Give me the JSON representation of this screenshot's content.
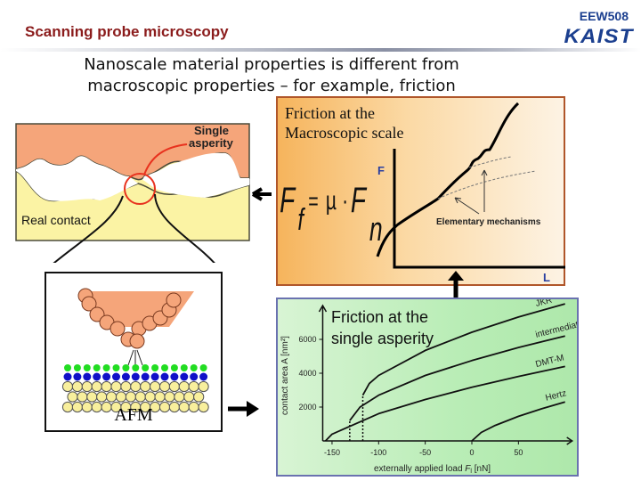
{
  "header": {
    "title": "Scanning probe microscopy",
    "course": "EEW508",
    "logo": "KAIST"
  },
  "subtitle": {
    "line1": "Nanoscale material properties is different from",
    "line2": "macroscopic properties – for example, friction"
  },
  "contact_figure": {
    "single_asperity_line1": "Single",
    "single_asperity_line2": "asperity",
    "real_contact": "Real contact",
    "colors": {
      "upper": "#f5a57a",
      "lower": "#fbf3a4",
      "circle": "#e8321e"
    }
  },
  "macro_panel": {
    "title_line1": "Friction at the",
    "title_line2": "Macroscopic scale",
    "formula": {
      "F": "F",
      "f": "f",
      "eq": "=",
      "mu": "µ",
      "dot": "·",
      "n": "n"
    },
    "axis_y": "F",
    "axis_x": "L",
    "annotation": "Elementary mechanisms"
  },
  "afm_panel": {
    "label": "AFM"
  },
  "chart_data": {
    "type": "line",
    "title": "Friction at the single asperity",
    "xlabel": "externally applied load F_l [nN]",
    "xlabel_main": "externally applied load ",
    "xlabel_sym": "F",
    "xlabel_sub": "l",
    "xlabel_unit": " [nN]",
    "ylabel": "contact area A [nm²]",
    "xlim": [
      -160,
      100
    ],
    "ylim": [
      0,
      8200
    ],
    "xticks": [
      -150,
      -100,
      -50,
      0,
      50
    ],
    "yticks": [
      2000,
      4000,
      6000
    ],
    "series": [
      {
        "name": "JKR",
        "x": [
          -117,
          -110,
          -100,
          -50,
          0,
          50,
          100
        ],
        "y": [
          2700,
          3390,
          3870,
          5350,
          6420,
          7320,
          8100
        ]
      },
      {
        "name": "intermediate",
        "x": [
          -131,
          -120,
          -100,
          -50,
          0,
          50,
          100
        ],
        "y": [
          1200,
          2000,
          2700,
          3870,
          4750,
          5520,
          6200
        ]
      },
      {
        "name": "DMT-M",
        "x": [
          -157,
          -150,
          -100,
          -50,
          0,
          50,
          100
        ],
        "y": [
          0,
          400,
          1610,
          2450,
          3170,
          3810,
          4400
        ]
      },
      {
        "name": "Hertz",
        "x": [
          0,
          10,
          25,
          50,
          75,
          100
        ],
        "y": [
          0,
          500,
          915,
          1450,
          1900,
          2300
        ]
      }
    ],
    "dotted_verticals": [
      {
        "x": -131,
        "y": 1200
      },
      {
        "x": -117,
        "y": 2700
      }
    ],
    "grid": false
  }
}
